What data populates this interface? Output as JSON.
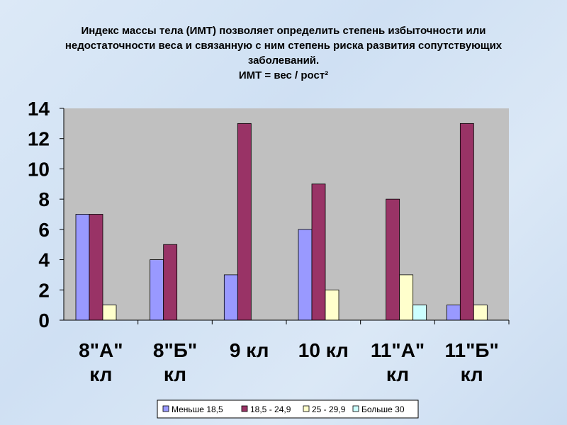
{
  "chart_data": {
    "type": "bar",
    "title": "Индекс массы тела (ИМТ) позволяет определить степень избыточности или недостаточности веса и связанную с ним степень риска развития сопутствующих заболеваний.",
    "subtitle": "ИМТ = вес / рост²",
    "categories": [
      "8\"А\" кл",
      "8\"Б\" кл",
      "9 кл",
      "10 кл",
      "11\"А\" кл",
      "11\"Б\" кл"
    ],
    "series": [
      {
        "name": "Меньше 18,5",
        "color": "#9999ff",
        "values": [
          7,
          4,
          3,
          6,
          0,
          1
        ]
      },
      {
        "name": "18,5 - 24,9",
        "color": "#993366",
        "values": [
          7,
          5,
          13,
          9,
          8,
          13
        ]
      },
      {
        "name": "25 - 29,9",
        "color": "#ffffcc",
        "values": [
          1,
          0,
          0,
          2,
          3,
          1
        ]
      },
      {
        "name": "Больше 30",
        "color": "#ccffff",
        "values": [
          0,
          0,
          0,
          0,
          1,
          0
        ]
      }
    ],
    "ylim": [
      0,
      14
    ],
    "yticks": [
      0,
      2,
      4,
      6,
      8,
      10,
      12,
      14
    ],
    "legend": "bottom"
  }
}
